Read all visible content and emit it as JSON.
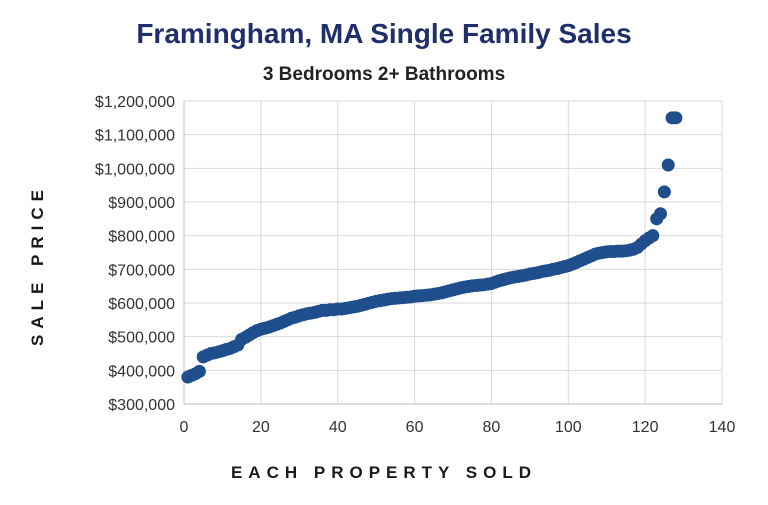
{
  "chart_data": {
    "type": "scatter",
    "title": "Framingham, MA Single Family Sales",
    "subtitle": "3 Bedrooms 2+ Bathrooms",
    "xlabel": "EACH PROPERTY SOLD",
    "ylabel": "SALE PRICE",
    "xlim": [
      0,
      140
    ],
    "ylim": [
      300000,
      1200000
    ],
    "x_ticks": [
      "0",
      "20",
      "40",
      "60",
      "80",
      "100",
      "120",
      "140"
    ],
    "y_ticks": [
      "$300,000",
      "$400,000",
      "$500,000",
      "$600,000",
      "$700,000",
      "$800,000",
      "$900,000",
      "$1,000,000",
      "$1,100,000",
      "$1,200,000"
    ],
    "grid": true,
    "marker_color": "#1f4e8c",
    "x": [
      1,
      2,
      3,
      4,
      5,
      6,
      7,
      8,
      9,
      10,
      11,
      12,
      13,
      14,
      15,
      16,
      17,
      18,
      19,
      20,
      21,
      22,
      23,
      24,
      25,
      26,
      27,
      28,
      29,
      30,
      31,
      32,
      33,
      34,
      35,
      36,
      37,
      38,
      39,
      40,
      41,
      42,
      43,
      44,
      45,
      46,
      47,
      48,
      49,
      50,
      51,
      52,
      53,
      54,
      55,
      56,
      57,
      58,
      59,
      60,
      61,
      62,
      63,
      64,
      65,
      66,
      67,
      68,
      69,
      70,
      71,
      72,
      73,
      74,
      75,
      76,
      77,
      78,
      79,
      80,
      81,
      82,
      83,
      84,
      85,
      86,
      87,
      88,
      89,
      90,
      91,
      92,
      93,
      94,
      95,
      96,
      97,
      98,
      99,
      100,
      101,
      102,
      103,
      104,
      105,
      106,
      107,
      108,
      109,
      110,
      111,
      112,
      113,
      114,
      115,
      116,
      117,
      118,
      119,
      120,
      121,
      122,
      123,
      124,
      125,
      126,
      127,
      128
    ],
    "y": [
      380000,
      385000,
      390000,
      397000,
      440000,
      445000,
      450000,
      452000,
      455000,
      458000,
      462000,
      465000,
      470000,
      475000,
      492000,
      498000,
      505000,
      512000,
      518000,
      522000,
      525000,
      528000,
      532000,
      536000,
      540000,
      545000,
      550000,
      555000,
      558000,
      562000,
      565000,
      568000,
      570000,
      572000,
      575000,
      578000,
      578000,
      580000,
      580000,
      582000,
      582000,
      584000,
      586000,
      588000,
      590000,
      593000,
      596000,
      599000,
      602000,
      605000,
      607000,
      609000,
      611000,
      613000,
      614000,
      615000,
      616000,
      617000,
      618000,
      620000,
      621000,
      622000,
      623000,
      624000,
      626000,
      628000,
      630000,
      633000,
      636000,
      639000,
      642000,
      645000,
      647000,
      649000,
      651000,
      652000,
      653000,
      654000,
      656000,
      658000,
      662000,
      666000,
      669000,
      672000,
      675000,
      677000,
      679000,
      681000,
      683000,
      686000,
      688000,
      690000,
      693000,
      695000,
      697000,
      700000,
      702000,
      705000,
      708000,
      711000,
      715000,
      720000,
      725000,
      730000,
      735000,
      740000,
      745000,
      748000,
      750000,
      752000,
      753000,
      753000,
      754000,
      754000,
      755000,
      757000,
      760000,
      765000,
      775000,
      785000,
      793000,
      800000,
      850000,
      865000,
      930000,
      1010000,
      1150000,
      1150000
    ]
  }
}
